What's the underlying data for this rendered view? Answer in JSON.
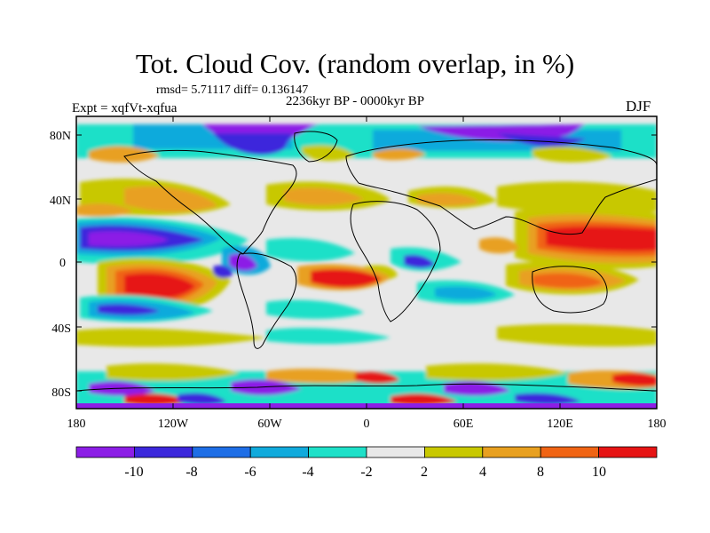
{
  "header": {
    "title": "Tot. Cloud Cov. (random overlap, in %)",
    "stats": "rmsd= 5.71117 diff= 0.136147",
    "period": "2236kyr BP - 0000kyr BP",
    "experiment": "Expt = xqfVt-xqfua",
    "season": "DJF"
  },
  "axes": {
    "lat_labels": [
      "80N",
      "40N",
      "0",
      "40S",
      "80S"
    ],
    "lon_labels": [
      "180",
      "120W",
      "60W",
      "0",
      "60E",
      "120E",
      "180"
    ]
  },
  "colorbar": {
    "labels": [
      "-10",
      "-8",
      "-6",
      "-4",
      "-2",
      "2",
      "4",
      "8",
      "10"
    ],
    "colors": [
      "#8c1ee6",
      "#3c28dc",
      "#1e6ee6",
      "#10aadc",
      "#1ee0c8",
      "#e8e8e8",
      "#c8c800",
      "#e8a020",
      "#f06414",
      "#e61414"
    ]
  },
  "map_fields": {
    "background": "#e8e8e8",
    "coast_color": "#000000"
  }
}
